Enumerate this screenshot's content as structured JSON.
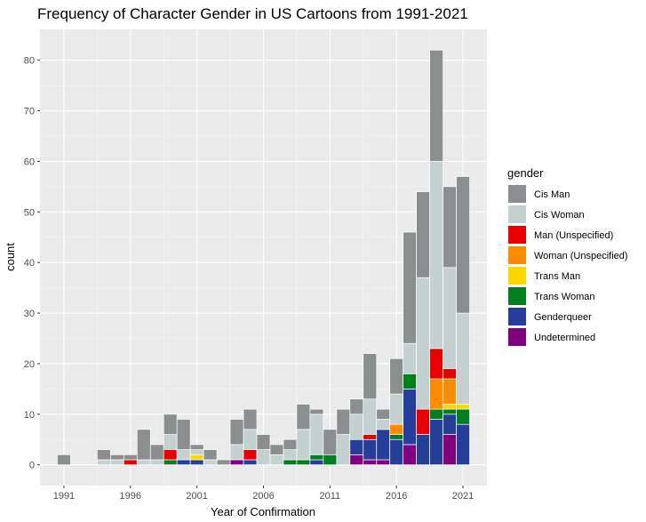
{
  "chart_data": {
    "type": "bar",
    "stacked": true,
    "title": "Frequency of Character Gender in US Cartoons from 1991-2021",
    "xlabel": "Year of Confirmation",
    "ylabel": "count",
    "x_ticks": [
      1991,
      1996,
      2001,
      2006,
      2011,
      2016,
      2021
    ],
    "y_ticks": [
      0,
      10,
      20,
      30,
      40,
      50,
      60,
      70,
      80
    ],
    "xlim": [
      1989.2,
      2022.8
    ],
    "ylim": [
      -4.1,
      86.1
    ],
    "grid": true,
    "legend": {
      "title": "gender",
      "position": "right"
    },
    "categories": [
      1991,
      1992,
      1993,
      1994,
      1995,
      1996,
      1997,
      1998,
      1999,
      2000,
      2001,
      2002,
      2003,
      2004,
      2005,
      2006,
      2007,
      2008,
      2009,
      2010,
      2011,
      2012,
      2013,
      2014,
      2015,
      2016,
      2017,
      2018,
      2019,
      2020,
      2021
    ],
    "series": [
      {
        "name": "Undetermined",
        "color": "#800080",
        "values": [
          0,
          0,
          0,
          0,
          0,
          0,
          0,
          0,
          0,
          0,
          0,
          0,
          0,
          1,
          0,
          0,
          0,
          0,
          0,
          0,
          0,
          0,
          2,
          1,
          1,
          0,
          4,
          0,
          0,
          6,
          0
        ]
      },
      {
        "name": "Genderqueer",
        "color": "#253e99",
        "values": [
          0,
          0,
          0,
          0,
          0,
          0,
          0,
          0,
          0,
          1,
          1,
          0,
          0,
          0,
          1,
          0,
          0,
          0,
          0,
          1,
          0,
          0,
          3,
          4,
          6,
          5,
          11,
          6,
          9,
          4,
          8
        ]
      },
      {
        "name": "Trans Woman",
        "color": "#007e20",
        "values": [
          0,
          0,
          0,
          0,
          0,
          0,
          0,
          0,
          1,
          0,
          0,
          0,
          0,
          0,
          0,
          0,
          0,
          1,
          1,
          1,
          2,
          0,
          0,
          0,
          0,
          1,
          3,
          0,
          2,
          1,
          3
        ]
      },
      {
        "name": "Trans Man",
        "color": "#ffd700",
        "values": [
          0,
          0,
          0,
          0,
          0,
          0,
          0,
          0,
          0,
          0,
          1,
          0,
          0,
          0,
          0,
          0,
          0,
          0,
          0,
          0,
          0,
          0,
          0,
          0,
          0,
          0,
          0,
          0,
          0,
          1,
          1
        ]
      },
      {
        "name": "Woman (Unspecified)",
        "color": "#ff8c00",
        "values": [
          0,
          0,
          0,
          0,
          0,
          0,
          0,
          0,
          0,
          0,
          0,
          0,
          0,
          0,
          0,
          0,
          0,
          0,
          0,
          0,
          0,
          0,
          0,
          0,
          0,
          2,
          0,
          0,
          6,
          5,
          0
        ]
      },
      {
        "name": "Man (Unspecified)",
        "color": "#e60000",
        "values": [
          0,
          0,
          0,
          0,
          0,
          1,
          0,
          0,
          2,
          0,
          0,
          0,
          0,
          0,
          2,
          0,
          0,
          0,
          0,
          0,
          0,
          0,
          0,
          1,
          0,
          0,
          0,
          5,
          6,
          2,
          0
        ]
      },
      {
        "name": "Cis Woman",
        "color": "#c5d0d0",
        "values": [
          0,
          0,
          0,
          1,
          1,
          0,
          1,
          1,
          3,
          2,
          1,
          1,
          0,
          3,
          4,
          3,
          2,
          2,
          6,
          8,
          0,
          6,
          5,
          7,
          2,
          6,
          6,
          26,
          37,
          20,
          18
        ]
      },
      {
        "name": "Cis Man",
        "color": "#8a8e8e",
        "values": [
          2,
          0,
          0,
          2,
          1,
          1,
          6,
          3,
          4,
          6,
          1,
          2,
          1,
          5,
          4,
          3,
          2,
          2,
          5,
          1,
          5,
          5,
          3,
          9,
          2,
          7,
          22,
          17,
          22,
          16,
          27
        ]
      }
    ],
    "legend_order": [
      "Cis Man",
      "Cis Woman",
      "Man (Unspecified)",
      "Woman (Unspecified)",
      "Trans Man",
      "Trans Woman",
      "Genderqueer",
      "Undetermined"
    ]
  }
}
